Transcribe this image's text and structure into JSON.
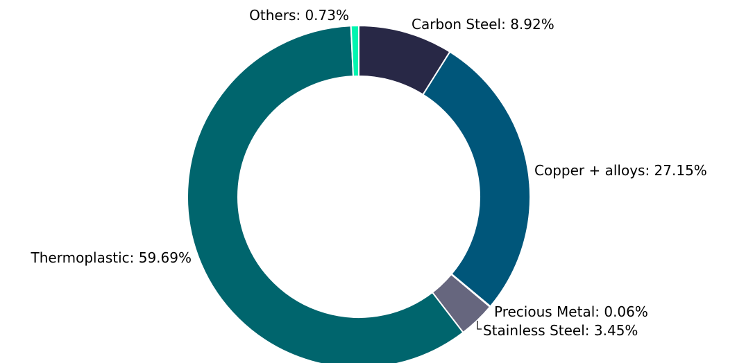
{
  "chart_data": {
    "type": "pie",
    "variant": "donut",
    "title": "",
    "slices": [
      {
        "label": "Carbon Steel",
        "value": 8.92,
        "text": "Carbon Steel: 8.92%",
        "color": "#282846"
      },
      {
        "label": "Copper + alloys",
        "value": 27.15,
        "text": "Copper + alloys: 27.15%",
        "color": "#00567A"
      },
      {
        "label": "Precious Metal",
        "value": 0.06,
        "text": "Precious Metal: 0.06%",
        "color": "#005A70"
      },
      {
        "label": "Stainless Steel",
        "value": 3.45,
        "text": "Stainless Steel: 3.45%",
        "color": "#66667E"
      },
      {
        "label": "Thermoplastic",
        "value": 59.69,
        "text": "Thermoplastic: 59.69%",
        "color": "#00656D"
      },
      {
        "label": "Others",
        "value": 0.73,
        "text": "Others: 0.73%",
        "color": "#00F5B0"
      }
    ]
  }
}
